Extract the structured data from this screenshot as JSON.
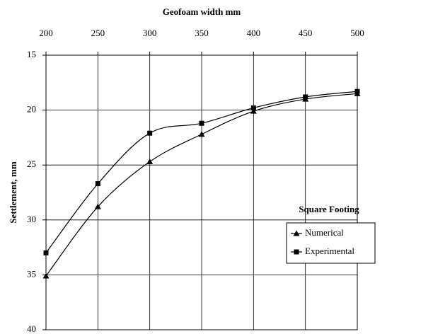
{
  "chart_data": {
    "type": "line",
    "x_label": "Geofoam width mm",
    "y_label": "Settlement, mm",
    "x": [
      200,
      250,
      300,
      350,
      400,
      450,
      500
    ],
    "series": [
      {
        "name": "Numerical",
        "color": "#000000",
        "marker": "triangle",
        "values": [
          35.1,
          28.8,
          24.7,
          22.2,
          20.1,
          19.0,
          18.5
        ]
      },
      {
        "name": "Experimental",
        "color": "#000000",
        "marker": "square",
        "values": [
          33.0,
          26.7,
          22.1,
          21.2,
          19.8,
          18.8,
          18.3
        ]
      }
    ],
    "xlim": [
      200,
      500
    ],
    "xticks": [
      200,
      250,
      300,
      350,
      400,
      450,
      500
    ],
    "ylim": [
      15,
      40
    ],
    "yticks": [
      15,
      20,
      25,
      30,
      35,
      40
    ],
    "y_inverted": true,
    "x_axis_position": "top",
    "grid": true,
    "legend_title": "Square Footing",
    "legend": "right"
  }
}
